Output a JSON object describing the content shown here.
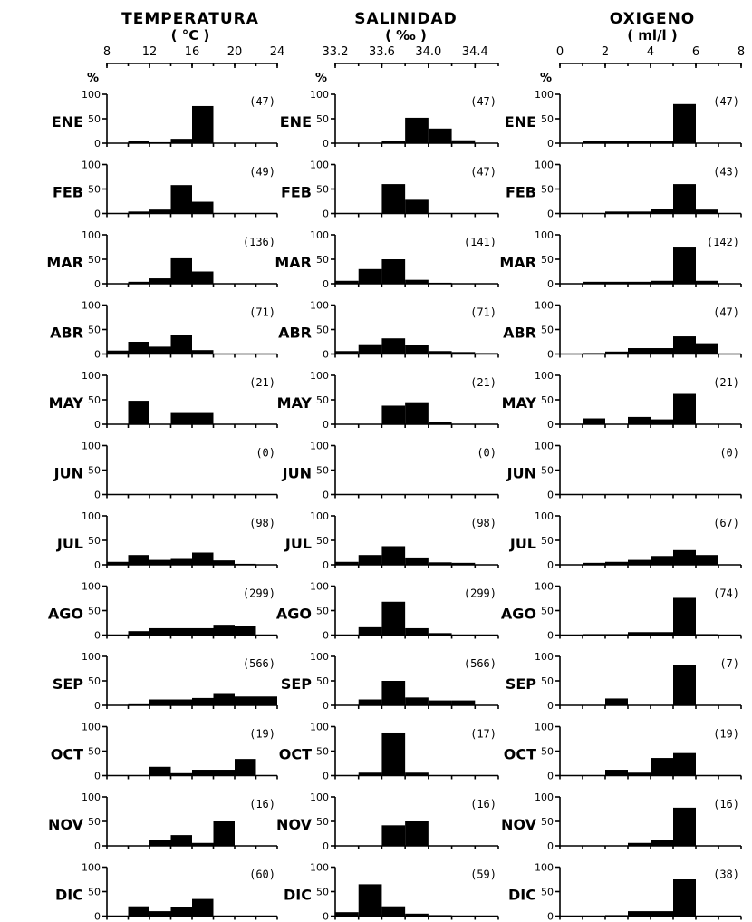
{
  "columns": [
    {
      "key": "temperatura",
      "title": "TEMPERATURA",
      "unit": "( °C )",
      "xticks": [
        "8",
        "12",
        "16",
        "20",
        "24"
      ]
    },
    {
      "key": "salinidad",
      "title": "SALINIDAD",
      "unit": "( ‰ )",
      "xticks": [
        "33.2",
        "33.6",
        "34.0",
        "34.4"
      ]
    },
    {
      "key": "oxigeno",
      "title": "OXIGENO",
      "unit": "( ml/l )",
      "xticks": [
        "0",
        "2",
        "4",
        "6",
        "8"
      ]
    }
  ],
  "y_axis": {
    "label": "%",
    "ticks": [
      "0",
      "50",
      "100"
    ]
  },
  "chart_data": [
    {
      "type": "bar",
      "variable": "TEMPERATURA (°C)",
      "xlim": [
        8,
        24
      ],
      "ylim": [
        0,
        100
      ],
      "bin_edges": [
        8,
        10,
        12,
        14,
        16,
        18,
        20,
        22,
        24
      ],
      "months": [
        {
          "month": "ENE",
          "n": "(47)",
          "values": [
            0,
            4,
            2,
            9,
            76,
            0,
            0,
            0
          ]
        },
        {
          "month": "FEB",
          "n": "(49)",
          "values": [
            0,
            4,
            8,
            58,
            24,
            0,
            0,
            0
          ]
        },
        {
          "month": "MAR",
          "n": "(136)",
          "values": [
            0,
            4,
            11,
            52,
            25,
            0,
            0,
            0
          ]
        },
        {
          "month": "ABR",
          "n": "(71)",
          "values": [
            7,
            25,
            15,
            38,
            8,
            0,
            0,
            0
          ]
        },
        {
          "month": "MAY",
          "n": "(21)",
          "values": [
            0,
            48,
            0,
            23,
            23,
            0,
            0,
            0
          ]
        },
        {
          "month": "JUN",
          "n": "(0)",
          "values": [
            0,
            0,
            0,
            0,
            0,
            0,
            0,
            0
          ]
        },
        {
          "month": "JUL",
          "n": "(98)",
          "values": [
            6,
            20,
            10,
            12,
            25,
            9,
            2,
            0
          ]
        },
        {
          "month": "AGO",
          "n": "(299)",
          "values": [
            0,
            8,
            14,
            14,
            14,
            21,
            19,
            0
          ]
        },
        {
          "month": "SEP",
          "n": "(566)",
          "values": [
            0,
            4,
            12,
            12,
            15,
            25,
            18,
            18
          ]
        },
        {
          "month": "OCT",
          "n": "(19)",
          "values": [
            0,
            0,
            18,
            5,
            12,
            12,
            34,
            0
          ]
        },
        {
          "month": "NOV",
          "n": "(16)",
          "values": [
            0,
            0,
            12,
            22,
            6,
            50,
            0,
            0
          ]
        },
        {
          "month": "DIC",
          "n": "(60)",
          "values": [
            0,
            20,
            10,
            18,
            35,
            0,
            0,
            0
          ]
        }
      ]
    },
    {
      "type": "bar",
      "variable": "SALINIDAD (‰)",
      "xlim": [
        33.2,
        34.6
      ],
      "ylim": [
        0,
        100
      ],
      "bin_edges": [
        33.2,
        33.4,
        33.6,
        33.8,
        34.0,
        34.2,
        34.4,
        34.6
      ],
      "months": [
        {
          "month": "ENE",
          "n": "(47)",
          "values": [
            0,
            0,
            4,
            52,
            30,
            6,
            0
          ]
        },
        {
          "month": "FEB",
          "n": "(47)",
          "values": [
            0,
            0,
            60,
            28,
            0,
            0,
            0
          ]
        },
        {
          "month": "MAR",
          "n": "(141)",
          "values": [
            6,
            30,
            50,
            8,
            2,
            0,
            0
          ]
        },
        {
          "month": "ABR",
          "n": "(71)",
          "values": [
            6,
            20,
            32,
            18,
            6,
            4,
            2
          ]
        },
        {
          "month": "MAY",
          "n": "(21)",
          "values": [
            0,
            0,
            38,
            45,
            5,
            0,
            0
          ]
        },
        {
          "month": "JUN",
          "n": "(0)",
          "values": [
            0,
            0,
            0,
            0,
            0,
            0,
            0
          ]
        },
        {
          "month": "JUL",
          "n": "(98)",
          "values": [
            6,
            20,
            38,
            15,
            5,
            4,
            0
          ]
        },
        {
          "month": "AGO",
          "n": "(299)",
          "values": [
            0,
            16,
            68,
            14,
            4,
            0,
            0
          ]
        },
        {
          "month": "SEP",
          "n": "(566)",
          "values": [
            0,
            12,
            50,
            16,
            10,
            10,
            0
          ]
        },
        {
          "month": "OCT",
          "n": "(17)",
          "values": [
            0,
            6,
            88,
            6,
            0,
            0,
            0
          ]
        },
        {
          "month": "NOV",
          "n": "(16)",
          "values": [
            0,
            0,
            42,
            50,
            0,
            0,
            0
          ]
        },
        {
          "month": "DIC",
          "n": "(59)",
          "values": [
            8,
            65,
            20,
            5,
            2,
            0,
            0
          ]
        }
      ]
    },
    {
      "type": "bar",
      "variable": "OXIGENO (ml/l)",
      "xlim": [
        0,
        8
      ],
      "ylim": [
        0,
        100
      ],
      "bin_edges": [
        0,
        1,
        2,
        3,
        4,
        5,
        6,
        7,
        8
      ],
      "months": [
        {
          "month": "ENE",
          "n": "(47)",
          "values": [
            0,
            4,
            4,
            4,
            4,
            80,
            0,
            0
          ]
        },
        {
          "month": "FEB",
          "n": "(43)",
          "values": [
            0,
            0,
            4,
            4,
            10,
            60,
            8,
            0
          ]
        },
        {
          "month": "MAR",
          "n": "(142)",
          "values": [
            0,
            4,
            4,
            4,
            6,
            74,
            6,
            0
          ]
        },
        {
          "month": "ABR",
          "n": "(47)",
          "values": [
            0,
            2,
            5,
            12,
            12,
            36,
            22,
            0
          ]
        },
        {
          "month": "MAY",
          "n": "(21)",
          "values": [
            0,
            12,
            0,
            15,
            10,
            62,
            0,
            0
          ]
        },
        {
          "month": "JUN",
          "n": "(0)",
          "values": [
            0,
            0,
            0,
            0,
            0,
            0,
            0,
            0
          ]
        },
        {
          "month": "JUL",
          "n": "(67)",
          "values": [
            0,
            4,
            6,
            10,
            18,
            30,
            20,
            0
          ]
        },
        {
          "month": "AGO",
          "n": "(74)",
          "values": [
            0,
            2,
            2,
            6,
            6,
            76,
            2,
            0
          ]
        },
        {
          "month": "SEP",
          "n": "(7)",
          "values": [
            0,
            0,
            14,
            0,
            0,
            82,
            0,
            0
          ]
        },
        {
          "month": "OCT",
          "n": "(19)",
          "values": [
            0,
            0,
            12,
            6,
            36,
            46,
            0,
            0
          ]
        },
        {
          "month": "NOV",
          "n": "(16)",
          "values": [
            0,
            0,
            0,
            6,
            12,
            78,
            0,
            0
          ]
        },
        {
          "month": "DIC",
          "n": "(38)",
          "values": [
            0,
            0,
            2,
            10,
            10,
            75,
            0,
            0
          ]
        }
      ]
    }
  ]
}
